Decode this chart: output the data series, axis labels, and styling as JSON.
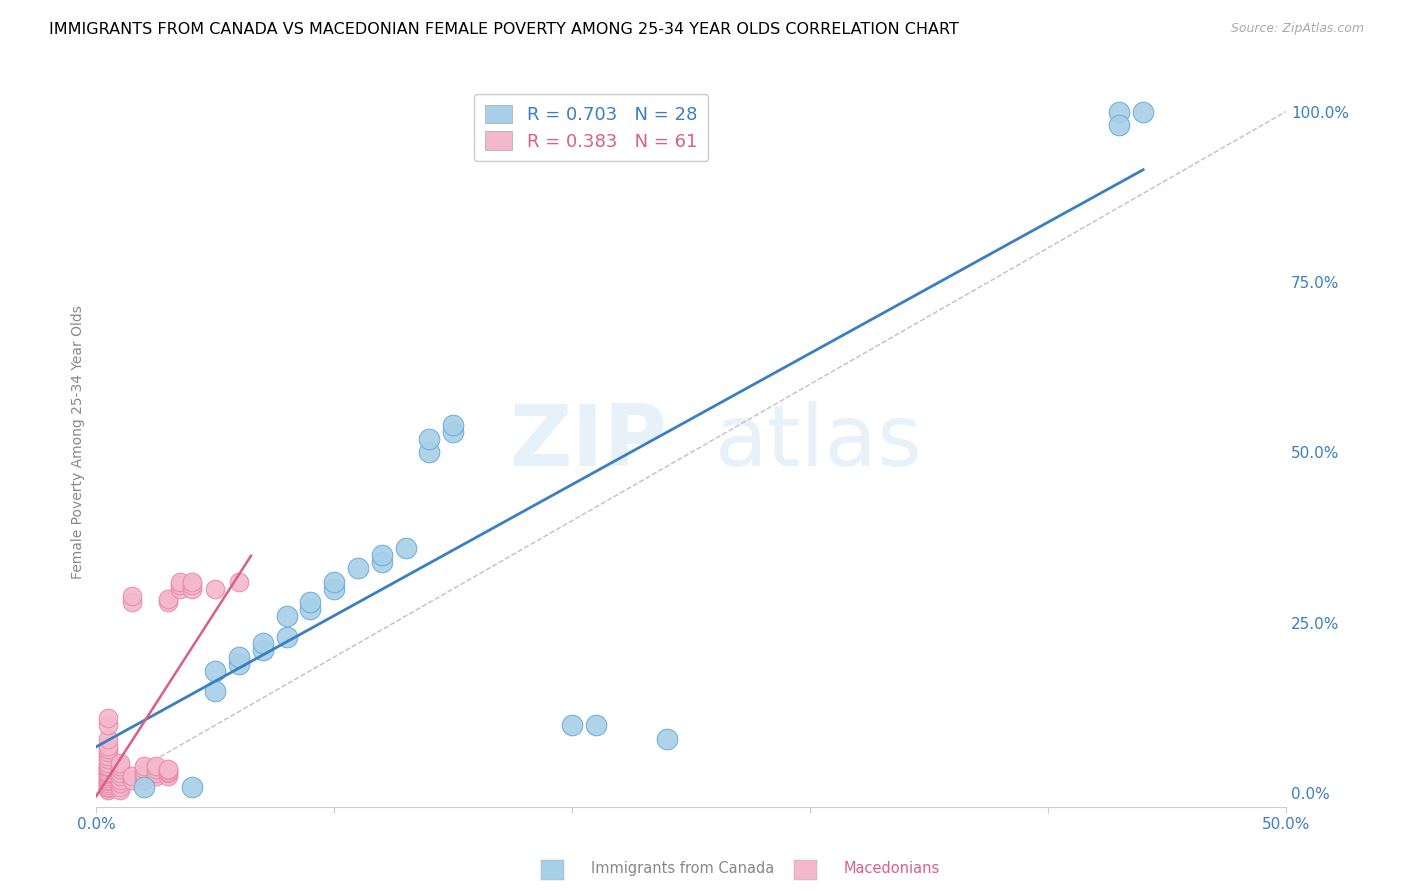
{
  "title": "IMMIGRANTS FROM CANADA VS MACEDONIAN FEMALE POVERTY AMONG 25-34 YEAR OLDS CORRELATION CHART",
  "source": "Source: ZipAtlas.com",
  "ylabel": "Female Poverty Among 25-34 Year Olds",
  "xlim": [
    0.0,
    0.5
  ],
  "ylim": [
    -0.02,
    1.05
  ],
  "xticks": [
    0.0,
    0.1,
    0.2,
    0.3,
    0.4,
    0.5
  ],
  "xtick_labels": [
    "0.0%",
    "",
    "",
    "",
    "",
    "50.0%"
  ],
  "ytick_labels_right": [
    "0.0%",
    "25.0%",
    "50.0%",
    "75.0%",
    "100.0%"
  ],
  "ytick_positions_right": [
    0.0,
    0.25,
    0.5,
    0.75,
    1.0
  ],
  "watermark_zip": "ZIP",
  "watermark_atlas": "atlas",
  "legend_blue_r": "R = 0.703",
  "legend_blue_n": "N = 28",
  "legend_pink_r": "R = 0.383",
  "legend_pink_n": "N = 61",
  "blue_color": "#a8cfe8",
  "pink_color": "#f4b8cc",
  "blue_edge_color": "#6aadd5",
  "pink_edge_color": "#e88aaa",
  "blue_line_color": "#3a7fc1",
  "pink_line_color": "#d95f8a",
  "diag_line_color": "#d0b0b0",
  "title_fontsize": 11.5,
  "blue_scatter_x": [
    0.02,
    0.04,
    0.05,
    0.05,
    0.06,
    0.06,
    0.07,
    0.07,
    0.08,
    0.08,
    0.09,
    0.09,
    0.1,
    0.1,
    0.11,
    0.12,
    0.12,
    0.13,
    0.14,
    0.14,
    0.15,
    0.15,
    0.2,
    0.21,
    0.24,
    0.43,
    0.43,
    0.44
  ],
  "blue_scatter_y": [
    0.01,
    0.01,
    0.15,
    0.18,
    0.19,
    0.2,
    0.21,
    0.22,
    0.23,
    0.26,
    0.27,
    0.28,
    0.3,
    0.31,
    0.33,
    0.34,
    0.35,
    0.36,
    0.5,
    0.52,
    0.53,
    0.54,
    0.1,
    0.1,
    0.08,
    1.0,
    0.98,
    1.0
  ],
  "pink_scatter_x": [
    0.005,
    0.005,
    0.005,
    0.005,
    0.005,
    0.005,
    0.005,
    0.005,
    0.005,
    0.005,
    0.005,
    0.005,
    0.005,
    0.005,
    0.005,
    0.005,
    0.005,
    0.005,
    0.005,
    0.005,
    0.005,
    0.005,
    0.005,
    0.005,
    0.01,
    0.01,
    0.01,
    0.01,
    0.01,
    0.01,
    0.01,
    0.01,
    0.01,
    0.015,
    0.015,
    0.015,
    0.015,
    0.02,
    0.02,
    0.02,
    0.02,
    0.02,
    0.025,
    0.025,
    0.025,
    0.025,
    0.03,
    0.03,
    0.03,
    0.03,
    0.03,
    0.03,
    0.03,
    0.035,
    0.035,
    0.035,
    0.04,
    0.04,
    0.04,
    0.05,
    0.06
  ],
  "pink_scatter_y": [
    0.005,
    0.008,
    0.01,
    0.012,
    0.015,
    0.018,
    0.02,
    0.022,
    0.025,
    0.028,
    0.03,
    0.032,
    0.035,
    0.038,
    0.04,
    0.045,
    0.05,
    0.055,
    0.06,
    0.065,
    0.07,
    0.08,
    0.1,
    0.11,
    0.005,
    0.01,
    0.015,
    0.02,
    0.025,
    0.03,
    0.035,
    0.04,
    0.045,
    0.02,
    0.025,
    0.28,
    0.29,
    0.02,
    0.025,
    0.03,
    0.035,
    0.04,
    0.025,
    0.03,
    0.035,
    0.04,
    0.025,
    0.28,
    0.285,
    0.03,
    0.032,
    0.034,
    0.036,
    0.3,
    0.305,
    0.31,
    0.3,
    0.305,
    0.31,
    0.3,
    0.31
  ]
}
